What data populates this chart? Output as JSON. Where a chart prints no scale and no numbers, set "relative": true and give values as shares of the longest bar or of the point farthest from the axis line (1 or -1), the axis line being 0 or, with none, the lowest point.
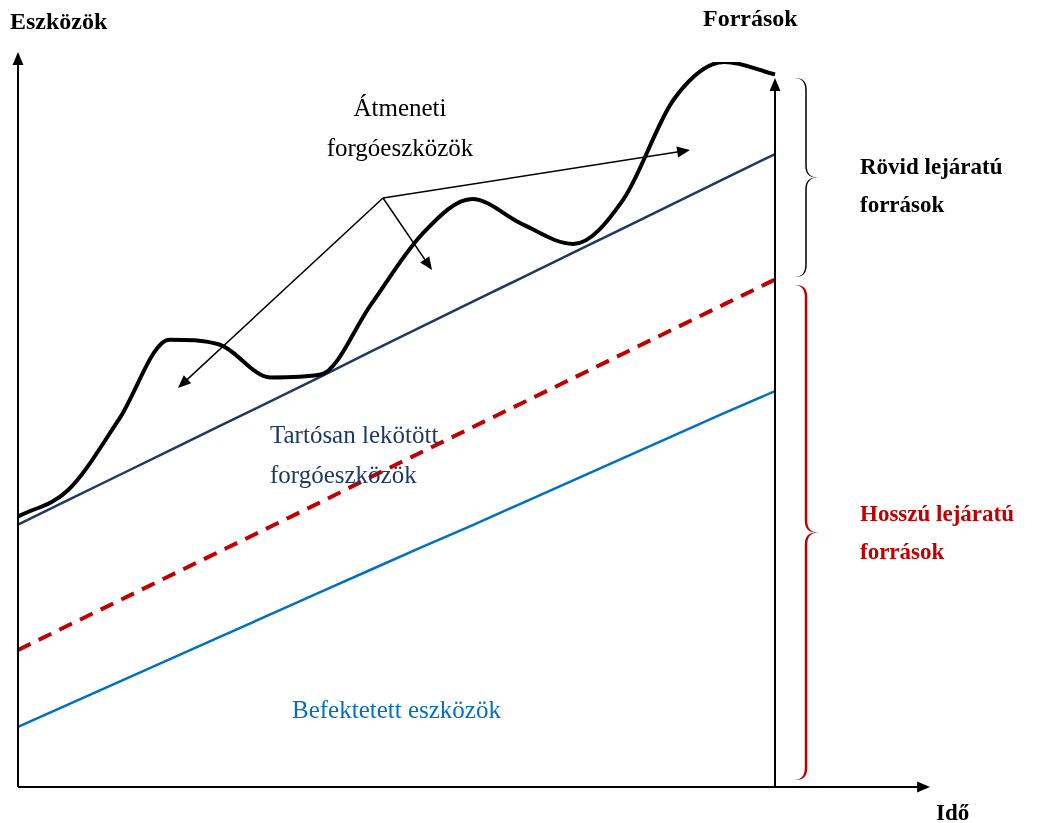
{
  "chart_data": {
    "type": "line",
    "relative": true,
    "tick_labels": false,
    "legend": false,
    "marker": "none",
    "ylabel": "Eszközök",
    "y2label": "Források",
    "categories": [
      null,
      null,
      null,
      null,
      null,
      null,
      null,
      null,
      null,
      null,
      null,
      null,
      null,
      null,
      null,
      null
    ],
    "series": [
      {
        "color": "#000000",
        "values": [
          0.373,
          0.41,
          0.507,
          0.617,
          0.61,
          0.565,
          0.569,
          0.666,
          0.762,
          0.811,
          0.776,
          0.749,
          0.811,
          0.949,
          1,
          0.983
        ]
      },
      {
        "color": "#1f3864",
        "values": [
          0.362,
          0.396,
          0.43,
          0.464,
          0.498,
          0.532,
          0.566,
          0.601,
          0.635,
          0.669,
          0.703,
          0.737,
          0.771,
          0.805,
          0.839,
          0.873
        ]
      },
      {
        "color": "#c00000",
        "line_style": "dashed",
        "values": [
          0.189,
          0.223,
          0.257,
          0.291,
          0.325,
          0.359,
          0.393,
          0.428,
          0.462,
          0.496,
          0.53,
          0.564,
          0.598,
          0.632,
          0.666,
          0.7
        ]
      },
      {
        "color": "#0070c0",
        "values": [
          0.083,
          0.114,
          0.145,
          0.176,
          0.207,
          0.238,
          0.269,
          0.3,
          0.331,
          0.361,
          0.392,
          0.423,
          0.454,
          0.485,
          0.516,
          0.546
        ]
      }
    ],
    "annotations": [
      "Átmeneti forgóeszközök",
      "Tartósan lekötött forgóeszközök",
      "Befektetett eszközök",
      "Idő",
      "Rövid lejáratú források",
      "Hosszú lejáratú források"
    ]
  }
}
